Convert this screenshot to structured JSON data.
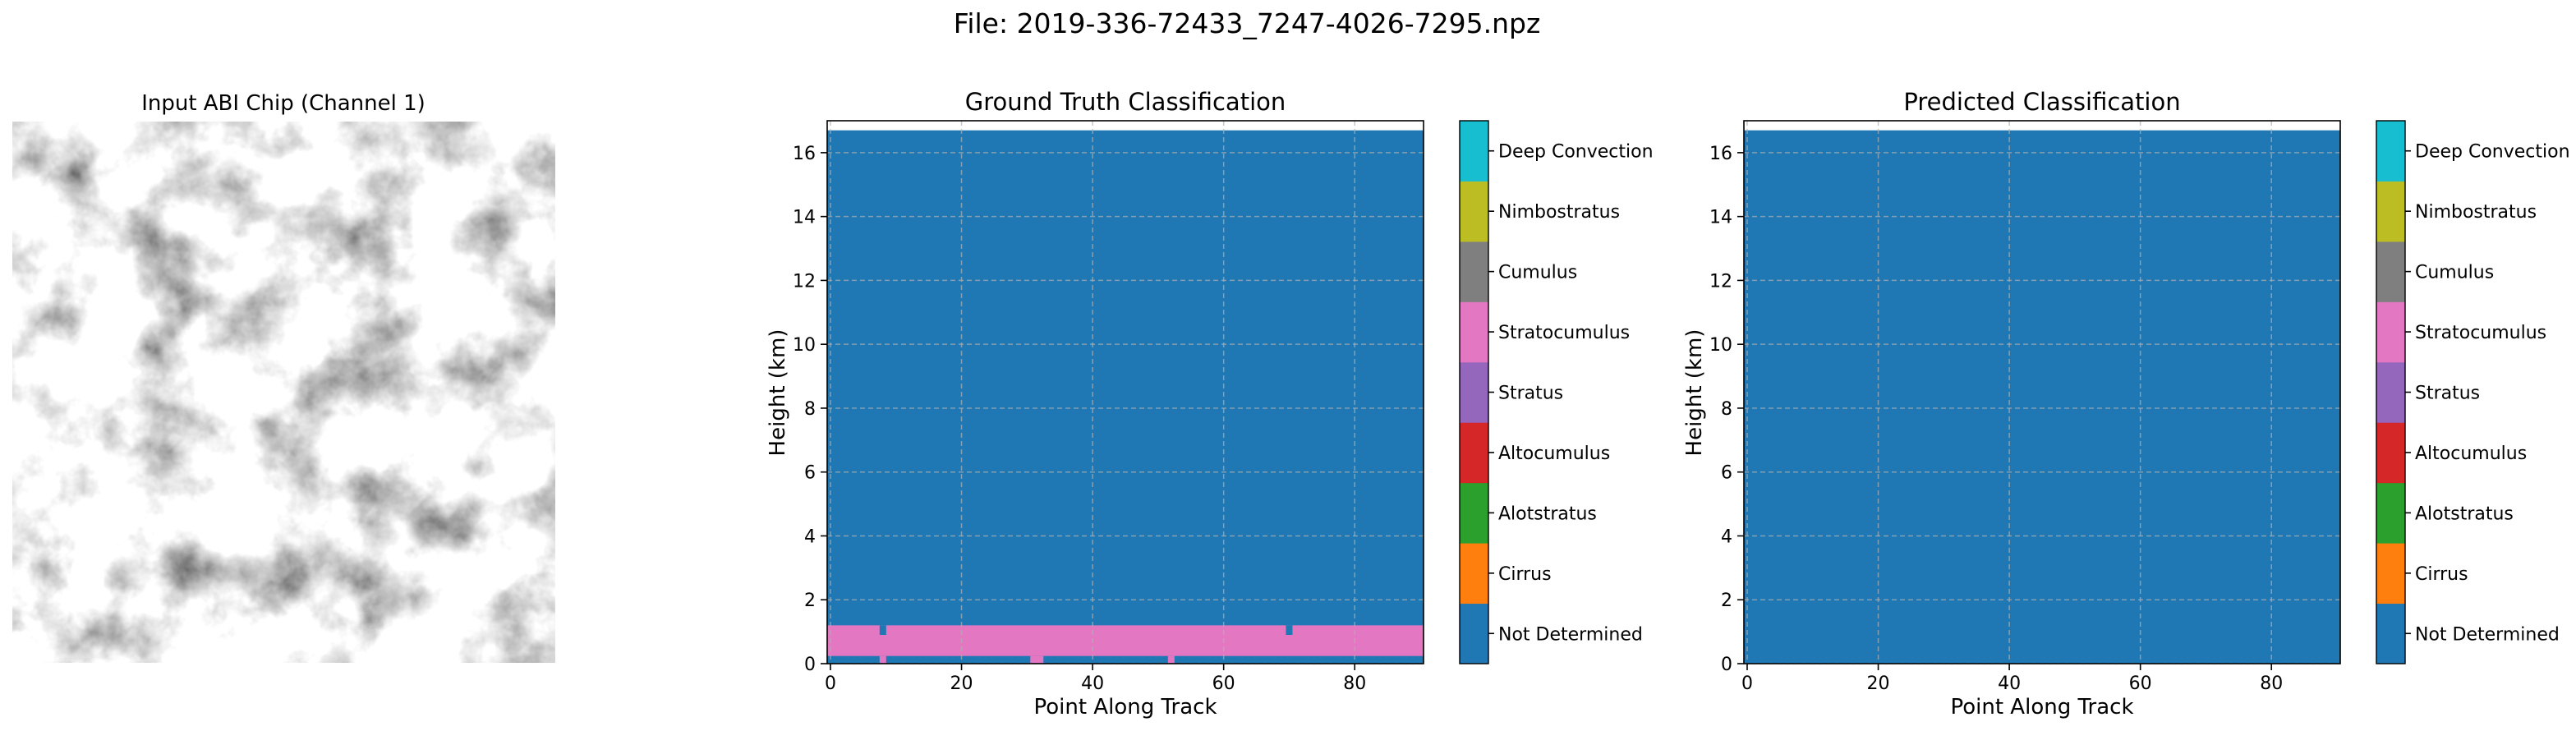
{
  "figure": {
    "suptitle": "File: 2019-336-72433_7247-4026-7295.npz"
  },
  "input_panel": {
    "title": "Input ABI Chip (Channel 1)",
    "colormap": "gray"
  },
  "class_colors": {
    "Not Determined": "#1f77b4",
    "Cirrus": "#ff7f0e",
    "Alotstratus": "#2ca02c",
    "Altocumulus": "#d62728",
    "Stratus": "#9467bd",
    "Stratocumulus": "#e377c2",
    "Cumulus": "#7f7f7f",
    "Nimbostratus": "#bcbd22",
    "Deep Convection": "#17becf"
  },
  "chart_data": [
    {
      "type": "heatmap",
      "title": "Ground Truth Classification",
      "xlabel": "Point Along Track",
      "ylabel": "Height (km)",
      "xlim": [
        -0.5,
        90.5
      ],
      "ylim": [
        0,
        17
      ],
      "xticks": [
        0,
        20,
        40,
        60,
        80
      ],
      "yticks": [
        0,
        2,
        4,
        6,
        8,
        10,
        12,
        14,
        16
      ],
      "grid": true,
      "background_class": "Not Determined",
      "data_top_km": 16.7,
      "regions": [
        {
          "class": "Stratocumulus",
          "x": [
            -0.5,
            90.5
          ],
          "y": [
            0.24,
            1.2
          ]
        },
        {
          "class": "Not Determined",
          "x": [
            7.5,
            8.5
          ],
          "y": [
            0.9,
            1.2
          ]
        },
        {
          "class": "Not Determined",
          "x": [
            69.5,
            70.5
          ],
          "y": [
            0.9,
            1.2
          ]
        },
        {
          "class": "Stratocumulus",
          "x": [
            7.5,
            8.5
          ],
          "y": [
            0.0,
            0.24
          ]
        },
        {
          "class": "Stratocumulus",
          "x": [
            30.5,
            32.5
          ],
          "y": [
            0.0,
            0.24
          ]
        },
        {
          "class": "Stratocumulus",
          "x": [
            51.5,
            52.5
          ],
          "y": [
            0.0,
            0.24
          ]
        }
      ],
      "colorbar": {
        "labels": [
          "Not Determined",
          "Cirrus",
          "Alotstratus",
          "Altocumulus",
          "Stratus",
          "Stratocumulus",
          "Cumulus",
          "Nimbostratus",
          "Deep Convection"
        ]
      }
    },
    {
      "type": "heatmap",
      "title": "Predicted Classification",
      "xlabel": "Point Along Track",
      "ylabel": "Height (km)",
      "xlim": [
        -0.5,
        90.5
      ],
      "ylim": [
        0,
        17
      ],
      "xticks": [
        0,
        20,
        40,
        60,
        80
      ],
      "yticks": [
        0,
        2,
        4,
        6,
        8,
        10,
        12,
        14,
        16
      ],
      "grid": true,
      "background_class": "Not Determined",
      "data_top_km": 16.7,
      "regions": [],
      "colorbar": {
        "labels": [
          "Not Determined",
          "Cirrus",
          "Alotstratus",
          "Altocumulus",
          "Stratus",
          "Stratocumulus",
          "Cumulus",
          "Nimbostratus",
          "Deep Convection"
        ]
      }
    }
  ]
}
